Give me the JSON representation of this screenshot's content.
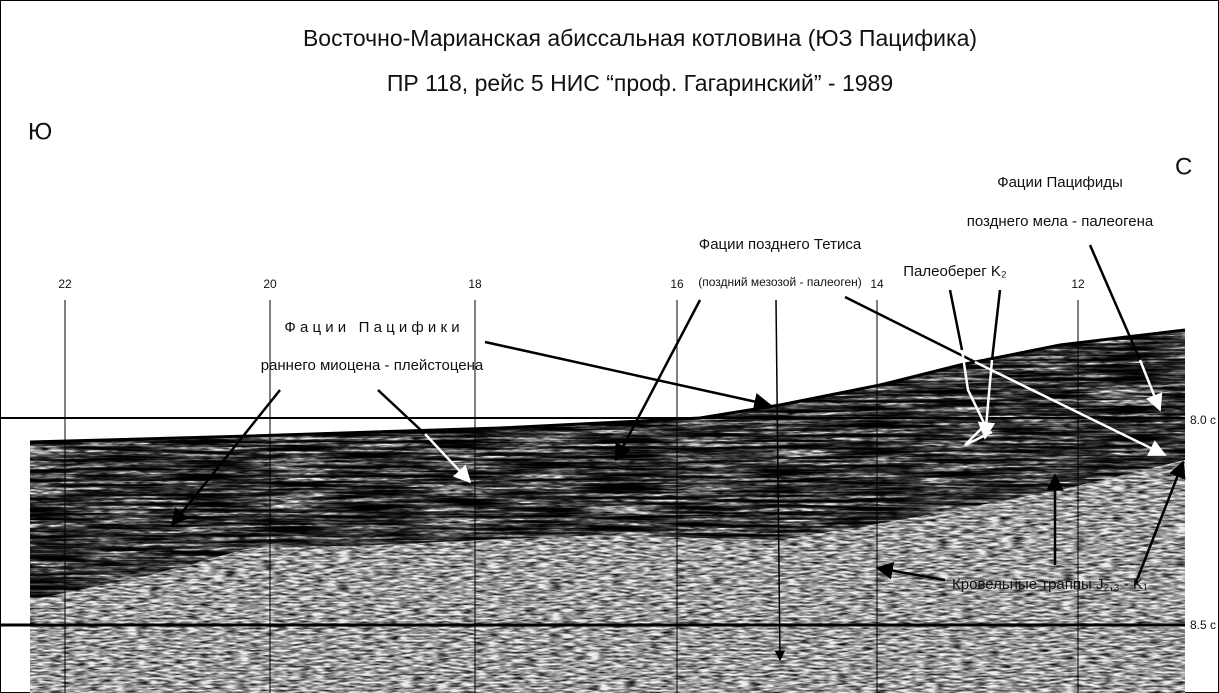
{
  "title": {
    "line1": "Восточно-Марианская абиссальная котловина (ЮЗ Пацифика)",
    "line2": "ПР 118, рейс 5 НИС “проф. Гагаринский” - 1989"
  },
  "directions": {
    "south": "Ю",
    "north": "С"
  },
  "shotpoints": [
    "22",
    "20",
    "18",
    "16",
    "14",
    "12"
  ],
  "time_marks": [
    "8.0 с",
    "8.5 с"
  ],
  "annotations": [
    {
      "lines": [
        "Фации Пацифиды",
        "позднего мела - палеогена"
      ]
    },
    {
      "lines": [
        "Фации позднего Тетиса",
        "(поздний мезозой - палеоген)"
      ]
    },
    {
      "lines": [
        "Палеоберег K₂"
      ]
    },
    {
      "lines": [
        "Ф а ц и и   П а ц и ф и к и",
        "раннего миоцена - плейстоцена"
      ]
    },
    {
      "lines": [
        "Кровельные траппы J₂,₃ - K₁"
      ]
    }
  ]
}
